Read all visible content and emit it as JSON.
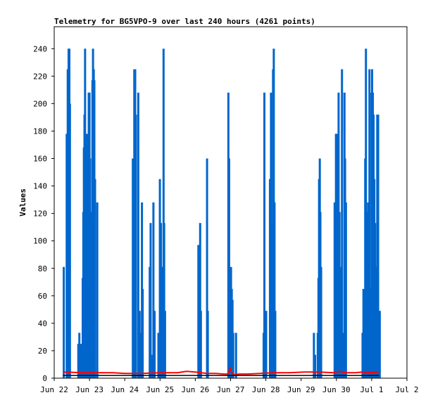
{
  "chart_data": {
    "type": "bar",
    "title": "Telemetry for BG5VPO-9 over last 240 hours (4261 points)",
    "ylabel": "Values",
    "xlabel": "",
    "xlim_hours": [
      0,
      240
    ],
    "ylim": [
      0,
      256
    ],
    "y_ticks": [
      0,
      20,
      40,
      60,
      80,
      100,
      120,
      140,
      160,
      180,
      200,
      220,
      240
    ],
    "x_ticks": [
      {
        "label": "Jun 22",
        "hour": 0
      },
      {
        "label": "Jun 23",
        "hour": 24
      },
      {
        "label": "Jun 24",
        "hour": 48
      },
      {
        "label": "Jun 25",
        "hour": 72
      },
      {
        "label": "Jun 26",
        "hour": 96
      },
      {
        "label": "Jun 27",
        "hour": 120
      },
      {
        "label": "Jun 28",
        "hour": 144
      },
      {
        "label": "Jun 29",
        "hour": 168
      },
      {
        "label": "Jun 30",
        "hour": 192
      },
      {
        "label": "Jul 1",
        "hour": 216
      },
      {
        "label": "Jul 2",
        "hour": 240
      }
    ],
    "grid": false,
    "colors": {
      "blue": "#0066cc",
      "red": "#ff0000",
      "black": "#000000"
    },
    "series": [
      {
        "color": "blue",
        "style": "impulses",
        "points": [
          [
            6.5,
            81
          ],
          [
            8.5,
            178
          ],
          [
            9.2,
            225
          ],
          [
            9.8,
            240
          ],
          [
            10.3,
            240
          ],
          [
            10.7,
            200
          ],
          [
            16.4,
            25
          ],
          [
            17.1,
            33
          ],
          [
            18.3,
            25
          ],
          [
            19.4,
            73
          ],
          [
            19.8,
            121
          ],
          [
            20.2,
            168
          ],
          [
            20.6,
            192
          ],
          [
            21.0,
            240
          ],
          [
            21.4,
            145
          ],
          [
            21.9,
            145
          ],
          [
            22.3,
            178
          ],
          [
            22.7,
            113
          ],
          [
            23.1,
            145
          ],
          [
            23.5,
            208
          ],
          [
            24.0,
            208
          ],
          [
            24.4,
            160
          ],
          [
            24.8,
            105
          ],
          [
            25.2,
            73
          ],
          [
            25.6,
            121
          ],
          [
            26.0,
            217
          ],
          [
            26.4,
            240
          ],
          [
            26.9,
            225
          ],
          [
            27.3,
            217
          ],
          [
            27.8,
            145
          ],
          [
            29.3,
            128
          ],
          [
            53.5,
            160
          ],
          [
            54.0,
            97
          ],
          [
            54.5,
            225
          ],
          [
            55.1,
            225
          ],
          [
            55.6,
            192
          ],
          [
            57.2,
            208
          ],
          [
            58.1,
            49
          ],
          [
            58.8,
            33
          ],
          [
            59.7,
            128
          ],
          [
            60.2,
            65
          ],
          [
            65.0,
            81
          ],
          [
            65.6,
            113
          ],
          [
            66.9,
            17
          ],
          [
            67.5,
            128
          ],
          [
            68.3,
            49
          ],
          [
            70.9,
            33
          ],
          [
            71.9,
            145
          ],
          [
            72.6,
            113
          ],
          [
            73.2,
            81
          ],
          [
            73.7,
            81
          ],
          [
            74.4,
            240
          ],
          [
            74.8,
            113
          ],
          [
            75.4,
            49
          ],
          [
            98.1,
            97
          ],
          [
            98.7,
            33
          ],
          [
            99.3,
            113
          ],
          [
            99.8,
            49
          ],
          [
            104.0,
            160
          ],
          [
            104.5,
            49
          ],
          [
            118.5,
            208
          ],
          [
            119.0,
            160
          ],
          [
            119.4,
            49
          ],
          [
            120.3,
            81
          ],
          [
            120.8,
            65
          ],
          [
            121.3,
            57
          ],
          [
            121.8,
            33
          ],
          [
            123.7,
            33
          ],
          [
            142.5,
            33
          ],
          [
            143.0,
            208
          ],
          [
            143.6,
            49
          ],
          [
            144.2,
            49
          ],
          [
            146.8,
            145
          ],
          [
            147.5,
            208
          ],
          [
            148.0,
            65
          ],
          [
            148.4,
            113
          ],
          [
            148.9,
            225
          ],
          [
            149.4,
            240
          ],
          [
            149.9,
            128
          ],
          [
            150.4,
            49
          ],
          [
            176.7,
            33
          ],
          [
            177.5,
            17
          ],
          [
            179.3,
            33
          ],
          [
            179.8,
            73
          ],
          [
            180.2,
            145
          ],
          [
            180.7,
            160
          ],
          [
            181.1,
            121
          ],
          [
            181.6,
            81
          ],
          [
            190.8,
            128
          ],
          [
            191.7,
            178
          ],
          [
            192.2,
            178
          ],
          [
            192.6,
            160
          ],
          [
            193.0,
            49
          ],
          [
            193.5,
            208
          ],
          [
            194.1,
            121
          ],
          [
            194.6,
            81
          ],
          [
            195.3,
            65
          ],
          [
            195.8,
            225
          ],
          [
            196.3,
            33
          ],
          [
            197.5,
            208
          ],
          [
            197.9,
            160
          ],
          [
            198.5,
            128
          ],
          [
            209.8,
            33
          ],
          [
            210.4,
            65
          ],
          [
            210.9,
            17
          ],
          [
            211.6,
            160
          ],
          [
            212.1,
            240
          ],
          [
            212.6,
            121
          ],
          [
            213.1,
            65
          ],
          [
            213.6,
            128
          ],
          [
            214.1,
            57
          ],
          [
            214.5,
            225
          ],
          [
            214.9,
            65
          ],
          [
            215.4,
            33
          ],
          [
            215.9,
            208
          ],
          [
            216.3,
            225
          ],
          [
            216.8,
            208
          ],
          [
            217.3,
            192
          ],
          [
            217.8,
            145
          ],
          [
            218.3,
            113
          ],
          [
            218.8,
            81
          ],
          [
            219.3,
            33
          ],
          [
            219.8,
            192
          ],
          [
            220.4,
            192
          ],
          [
            221.0,
            49
          ],
          [
            221.5,
            49
          ]
        ]
      },
      {
        "color": "red",
        "style": "line",
        "points": [
          [
            6,
            4.5
          ],
          [
            20,
            4
          ],
          [
            40,
            4
          ],
          [
            48,
            3.5
          ],
          [
            60,
            3.5
          ],
          [
            72,
            4
          ],
          [
            84,
            4
          ],
          [
            90,
            5
          ],
          [
            96,
            4.5
          ],
          [
            104,
            3.5
          ],
          [
            110,
            3.5
          ],
          [
            115,
            3
          ],
          [
            118,
            3
          ],
          [
            119,
            5
          ],
          [
            119.6,
            8
          ],
          [
            120.3,
            5
          ],
          [
            122,
            2.5
          ],
          [
            126,
            3
          ],
          [
            132,
            3
          ],
          [
            140,
            3.5
          ],
          [
            150,
            4
          ],
          [
            160,
            4
          ],
          [
            170,
            4.5
          ],
          [
            180,
            4.5
          ],
          [
            190,
            4
          ],
          [
            194,
            5
          ],
          [
            198,
            4
          ],
          [
            205,
            4
          ],
          [
            210,
            4.5
          ],
          [
            215,
            4
          ],
          [
            221,
            4.5
          ]
        ]
      },
      {
        "color": "black",
        "style": "line",
        "points": [
          [
            6,
            2
          ],
          [
            221,
            2
          ]
        ]
      }
    ]
  }
}
